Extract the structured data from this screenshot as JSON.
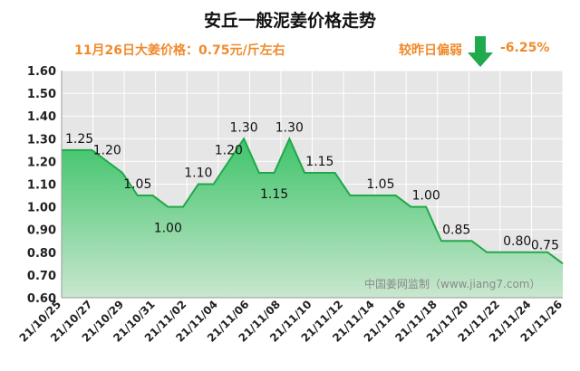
{
  "title": "安丘一般泥姜价格走势",
  "subtitle": "11月26日大姜价格：0.75元/斤左右",
  "compare_label": "较昨日偏弱",
  "change_text": "-6.25%",
  "trend_icon": "down-arrow-icon",
  "watermark": "中国姜网监制（www.jiang7.com）",
  "colors": {
    "accent": "#f08a2c",
    "line": "#22a84a",
    "fill_top": "#3fc46a",
    "fill_bottom": "#c9e7cf",
    "arrow": "#1faa4e"
  },
  "chart_data": {
    "type": "area",
    "title": "安丘一般泥姜价格走势",
    "xlabel": "",
    "ylabel": "",
    "ylim": [
      0.6,
      1.6
    ],
    "yticks": [
      "0.60",
      "0.70",
      "0.80",
      "0.90",
      "1.00",
      "1.10",
      "1.20",
      "1.30",
      "1.40",
      "1.50",
      "1.60"
    ],
    "xticks": [
      "21/10/25",
      "21/10/27",
      "21/10/29",
      "21/10/31",
      "21/11/02",
      "21/11/04",
      "21/11/06",
      "21/11/08",
      "21/11/10",
      "21/11/12",
      "21/11/14",
      "21/11/16",
      "21/11/18",
      "21/11/20",
      "21/11/22",
      "21/11/24",
      "21/11/26"
    ],
    "series": [
      {
        "values": [
          1.25,
          1.25,
          1.25,
          1.2,
          1.15,
          1.05,
          1.05,
          1.0,
          1.0,
          1.1,
          1.1,
          1.2,
          1.3,
          1.15,
          1.15,
          1.3,
          1.15,
          1.15,
          1.15,
          1.05,
          1.05,
          1.05,
          1.05,
          1.0,
          1.0,
          0.85,
          0.85,
          0.85,
          0.8,
          0.8,
          0.8,
          0.8,
          0.8,
          0.75
        ]
      }
    ],
    "point_labels": [
      {
        "index": 0,
        "text": "1.25"
      },
      {
        "index": 3,
        "text": "1.20"
      },
      {
        "index": 5,
        "text": "1.05"
      },
      {
        "index": 7,
        "text": "1.00"
      },
      {
        "index": 9,
        "text": "1.10"
      },
      {
        "index": 11,
        "text": "1.20"
      },
      {
        "index": 12,
        "text": "1.30"
      },
      {
        "index": 14,
        "text": "1.15"
      },
      {
        "index": 15,
        "text": "1.30"
      },
      {
        "index": 17,
        "text": "1.15"
      },
      {
        "index": 21,
        "text": "1.05"
      },
      {
        "index": 24,
        "text": "1.00"
      },
      {
        "index": 26,
        "text": "0.85"
      },
      {
        "index": 30,
        "text": "0.80"
      },
      {
        "index": 33,
        "text": "0.75"
      }
    ],
    "grid": true,
    "legend": "none"
  }
}
